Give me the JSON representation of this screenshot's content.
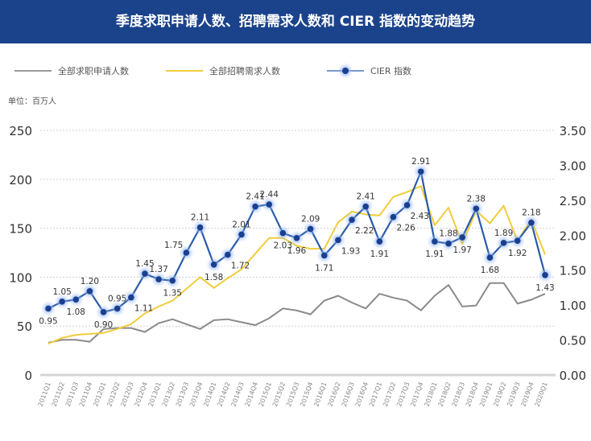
{
  "header": {
    "title": "季度求职申请人数、招聘需求人数和 CIER 指数的变动趋势"
  },
  "unit_label": "单位：百万人",
  "chart_data": {
    "type": "line",
    "title": "季度求职申请人数、招聘需求人数和 CIER 指数的变动趋势",
    "legend_position": "top-left",
    "grid": true,
    "categories": [
      "2011Q1",
      "2011Q2",
      "2011Q3",
      "2011Q4",
      "2012Q1",
      "2012Q2",
      "2012Q3",
      "2012Q4",
      "2013Q1",
      "2013Q2",
      "2013Q3",
      "2013Q4",
      "2014Q1",
      "2014Q2",
      "2014Q3",
      "2014Q4",
      "2015Q1",
      "2015Q2",
      "2015Q3",
      "2015Q4",
      "2016Q1",
      "2016Q2",
      "2016Q3",
      "2016Q4",
      "2017Q1",
      "2017Q2",
      "2017Q3",
      "2017Q4",
      "2018Q1",
      "2018Q2",
      "2018Q3",
      "2018Q4",
      "2019Q1",
      "2019Q2",
      "2019Q3",
      "2019Q4",
      "2020Q1"
    ],
    "y_left": {
      "range": [
        0,
        250
      ],
      "ticks": [
        "0",
        "50",
        "100",
        "150",
        "200",
        "250"
      ]
    },
    "y_right": {
      "range": [
        0,
        3.5
      ],
      "ticks": [
        "0.00",
        "0.50",
        "1.00",
        "1.50",
        "2.00",
        "2.50",
        "3.00",
        "3.50"
      ]
    },
    "series": [
      {
        "name": "全部求职申请人数",
        "axis": "left",
        "color": "#8a8a8a",
        "values": [
          33,
          36,
          36,
          34,
          47,
          48,
          48,
          44,
          53,
          57,
          52,
          47,
          56,
          57,
          54,
          51,
          58,
          68,
          66,
          62,
          76,
          81,
          74,
          68,
          83,
          79,
          76,
          66,
          81,
          92,
          70,
          71,
          94,
          94,
          73,
          77,
          83
        ]
      },
      {
        "name": "全部招聘需求人数",
        "axis": "left",
        "color": "#f0cc3c",
        "values": [
          32,
          38,
          41,
          42,
          43,
          47,
          52,
          63,
          70,
          76,
          88,
          100,
          89,
          99,
          108,
          124,
          140,
          140,
          132,
          129,
          129,
          156,
          167,
          164,
          163,
          182,
          187,
          193,
          153,
          171,
          134,
          168,
          155,
          173,
          137,
          159,
          123
        ]
      },
      {
        "name": "CIER 指数",
        "axis": "right",
        "color": "#2a5caa",
        "marker_color": "#1b3f8f",
        "values": [
          0.95,
          1.05,
          1.08,
          1.2,
          0.9,
          0.95,
          1.11,
          1.45,
          1.37,
          1.35,
          1.75,
          2.11,
          1.58,
          1.72,
          2.01,
          2.41,
          2.44,
          2.03,
          1.96,
          2.09,
          1.71,
          1.93,
          2.22,
          2.41,
          1.91,
          2.26,
          2.43,
          2.91,
          1.91,
          1.88,
          1.97,
          2.38,
          1.68,
          1.89,
          1.92,
          2.18,
          1.43
        ],
        "data_labels": [
          "0.95",
          "1.05",
          "1.08",
          "1.20",
          "0.90",
          "0.95",
          "1.11",
          "1.45",
          "1.37",
          "1.35",
          "1.75",
          "2.11",
          "1.58",
          "1.72",
          "2.01",
          "2.41",
          "2.44",
          "2.03",
          "1.96",
          "2.09",
          "1.71",
          "1.93",
          "2.22",
          "2.41",
          "1.91",
          "2.26",
          "2.43",
          "2.91",
          "1.91",
          "1.88",
          "1.97",
          "2.38",
          "1.68",
          "1.89",
          "1.92",
          "2.18",
          "1.43"
        ]
      }
    ]
  }
}
